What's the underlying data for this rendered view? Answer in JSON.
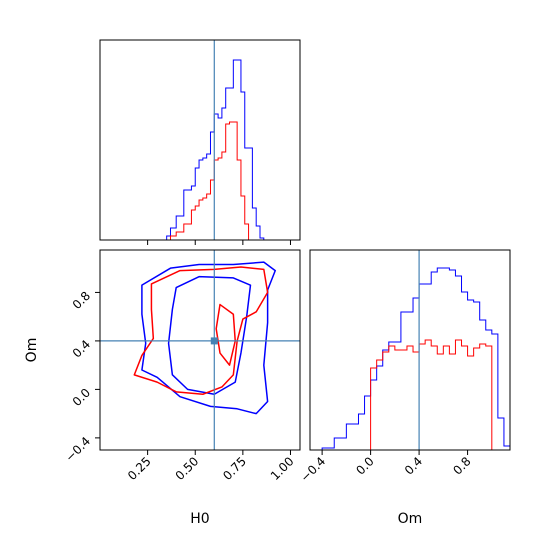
{
  "colors": {
    "series_a": "#0000ff",
    "series_b": "#ff0000",
    "truth": "#4682b4",
    "frame": "#000000"
  },
  "labels": {
    "x1": "H0",
    "x2": "Om",
    "y2": "Om"
  },
  "chart_data": [
    {
      "type": "histogram",
      "panel": "H0 marginal (top-left)",
      "xlim": [
        0.0,
        1.05
      ],
      "ylim": [
        0,
        1.0
      ],
      "truth_x": 0.6,
      "x_ticks": [
        0.25,
        0.5,
        0.75,
        1.0
      ],
      "tick_labels_shown": false,
      "bin_edges": [
        0.35,
        0.37,
        0.4,
        0.42,
        0.44,
        0.46,
        0.48,
        0.5,
        0.52,
        0.54,
        0.56,
        0.58,
        0.6,
        0.62,
        0.64,
        0.66,
        0.68,
        0.7,
        0.72,
        0.74,
        0.76,
        0.78,
        0.8,
        0.82,
        0.84,
        0.86
      ],
      "series": [
        {
          "color": "blue",
          "values": [
            0.02,
            0.06,
            0.12,
            0.12,
            0.25,
            0.25,
            0.27,
            0.36,
            0.4,
            0.41,
            0.43,
            0.54,
            0.63,
            0.61,
            0.66,
            0.76,
            0.76,
            0.9,
            0.9,
            0.74,
            0.46,
            0.46,
            0.16,
            0.07,
            0.01
          ]
        },
        {
          "color": "red",
          "values": [
            0.0,
            0.02,
            0.04,
            0.04,
            0.08,
            0.08,
            0.15,
            0.17,
            0.2,
            0.21,
            0.23,
            0.3,
            0.4,
            0.41,
            0.44,
            0.58,
            0.59,
            0.59,
            0.4,
            0.22,
            0.08,
            0.0,
            0.0,
            0.0,
            0.0
          ]
        }
      ]
    },
    {
      "type": "contour",
      "panel": "H0 vs Om joint (bottom-left)",
      "xlim": [
        0.0,
        1.05
      ],
      "ylim": [
        -0.5,
        1.15
      ],
      "truth": [
        0.6,
        0.4
      ],
      "x_ticks": [
        0.25,
        0.5,
        0.75,
        1.0
      ],
      "x_tick_labels": [
        "0.25",
        "0.50",
        "0.75",
        "1.00"
      ],
      "y_ticks": [
        -0.4,
        0.0,
        0.4,
        0.8
      ],
      "y_tick_labels": [
        "−0.4",
        "0.0",
        "0.4",
        "0.8"
      ],
      "series": [
        {
          "color": "blue",
          "levels": [
            [
              [
                0.22,
                0.86
              ],
              [
                0.37,
                1.0
              ],
              [
                0.52,
                1.03
              ],
              [
                0.7,
                1.03
              ],
              [
                0.86,
                1.05
              ],
              [
                0.92,
                0.98
              ],
              [
                0.88,
                0.82
              ],
              [
                0.88,
                0.55
              ],
              [
                0.86,
                0.2
              ],
              [
                0.88,
                -0.1
              ],
              [
                0.82,
                -0.2
              ],
              [
                0.72,
                -0.16
              ],
              [
                0.58,
                -0.14
              ],
              [
                0.42,
                -0.06
              ],
              [
                0.3,
                0.1
              ],
              [
                0.22,
                0.16
              ],
              [
                0.24,
                0.38
              ],
              [
                0.22,
                0.62
              ]
            ],
            [
              [
                0.4,
                0.84
              ],
              [
                0.52,
                0.93
              ],
              [
                0.7,
                0.92
              ],
              [
                0.79,
                0.86
              ],
              [
                0.77,
                0.6
              ],
              [
                0.74,
                0.3
              ],
              [
                0.71,
                0.06
              ],
              [
                0.6,
                -0.04
              ],
              [
                0.46,
                0.0
              ],
              [
                0.38,
                0.12
              ],
              [
                0.36,
                0.38
              ],
              [
                0.38,
                0.66
              ]
            ]
          ]
        },
        {
          "color": "red",
          "levels": [
            [
              [
                0.27,
                0.87
              ],
              [
                0.42,
                0.98
              ],
              [
                0.6,
                0.99
              ],
              [
                0.74,
                1.01
              ],
              [
                0.86,
                0.99
              ],
              [
                0.88,
                0.8
              ],
              [
                0.82,
                0.64
              ],
              [
                0.75,
                0.58
              ],
              [
                0.72,
                0.4
              ],
              [
                0.7,
                0.12
              ],
              [
                0.64,
                0.02
              ],
              [
                0.54,
                -0.04
              ],
              [
                0.4,
                -0.02
              ],
              [
                0.3,
                0.06
              ],
              [
                0.18,
                0.12
              ],
              [
                0.22,
                0.28
              ],
              [
                0.28,
                0.42
              ],
              [
                0.27,
                0.66
              ]
            ],
            [
              [
                0.63,
                0.7
              ],
              [
                0.7,
                0.62
              ],
              [
                0.71,
                0.4
              ],
              [
                0.68,
                0.2
              ],
              [
                0.63,
                0.3
              ],
              [
                0.61,
                0.5
              ]
            ]
          ]
        }
      ]
    },
    {
      "type": "histogram",
      "panel": "Om marginal (bottom-right)",
      "xlim": [
        -0.5,
        1.15
      ],
      "ylim": [
        0,
        1.0
      ],
      "truth_x": 0.4,
      "x_ticks": [
        -0.4,
        0.0,
        0.4,
        0.8
      ],
      "x_tick_labels": [
        "−0.4",
        "0.0",
        "0.4",
        "0.8"
      ],
      "bin_edges": [
        -0.5,
        -0.45,
        -0.4,
        -0.35,
        -0.3,
        -0.25,
        -0.2,
        -0.15,
        -0.1,
        -0.05,
        0.0,
        0.05,
        0.1,
        0.15,
        0.2,
        0.25,
        0.3,
        0.35,
        0.4,
        0.45,
        0.5,
        0.55,
        0.6,
        0.65,
        0.7,
        0.75,
        0.8,
        0.85,
        0.9,
        0.95,
        1.0,
        1.05,
        1.1,
        1.15
      ],
      "series": [
        {
          "color": "blue",
          "values": [
            0.0,
            0.0,
            0.01,
            0.01,
            0.06,
            0.06,
            0.13,
            0.13,
            0.18,
            0.27,
            0.35,
            0.42,
            0.5,
            0.54,
            0.54,
            0.69,
            0.69,
            0.76,
            0.83,
            0.83,
            0.89,
            0.91,
            0.91,
            0.9,
            0.87,
            0.79,
            0.75,
            0.74,
            0.65,
            0.6,
            0.58,
            0.16,
            0.02
          ]
        },
        {
          "color": "red",
          "values": [
            0.0,
            0.0,
            0.0,
            0.0,
            0.0,
            0.0,
            0.0,
            0.0,
            0.0,
            0.0,
            0.41,
            0.45,
            0.49,
            0.52,
            0.5,
            0.5,
            0.52,
            0.49,
            0.53,
            0.55,
            0.52,
            0.48,
            0.52,
            0.48,
            0.55,
            0.52,
            0.47,
            0.51,
            0.53,
            0.52,
            0.0,
            0.0,
            0.0
          ]
        }
      ]
    }
  ]
}
